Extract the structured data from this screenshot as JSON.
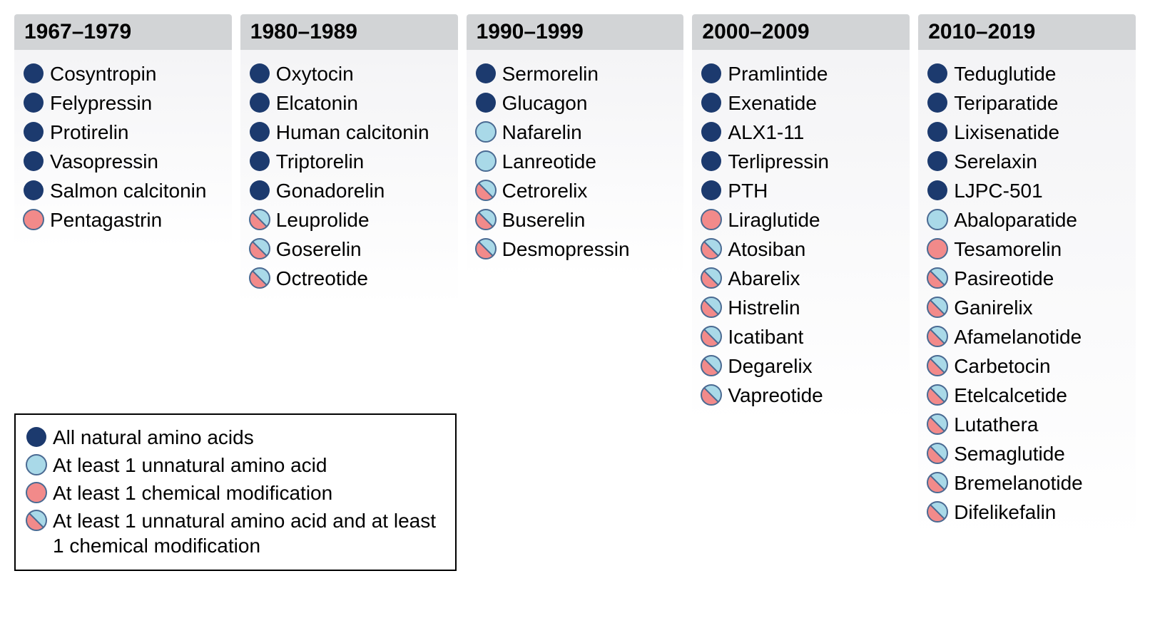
{
  "palette": {
    "navy": "#1c3a6e",
    "lightblue": "#a9d9e8",
    "coral": "#f28a8a",
    "stroke": "#4a6a92",
    "header_bg": "#d2d4d6",
    "body_bg_top": "#f4f4f6",
    "body_bg_bottom": "#ffffff",
    "text": "#000000",
    "legend_border": "#000000"
  },
  "markerTypes": {
    "natural": {
      "kind": "solid",
      "fill": "navy"
    },
    "unnatural": {
      "kind": "solid_outlined",
      "fill": "lightblue",
      "stroke": "stroke"
    },
    "chemmod": {
      "kind": "solid_outlined",
      "fill": "coral",
      "stroke": "stroke"
    },
    "both": {
      "kind": "split",
      "top": "lightblue",
      "bottom": "coral",
      "stroke": "stroke"
    }
  },
  "columns": [
    {
      "header": "1967–1979",
      "items": [
        {
          "label": "Cosyntropin",
          "type": "natural"
        },
        {
          "label": "Felypressin",
          "type": "natural"
        },
        {
          "label": "Protirelin",
          "type": "natural"
        },
        {
          "label": "Vasopressin",
          "type": "natural"
        },
        {
          "label": "Salmon calcitonin",
          "type": "natural"
        },
        {
          "label": "Pentagastrin",
          "type": "chemmod"
        }
      ]
    },
    {
      "header": "1980–1989",
      "items": [
        {
          "label": "Oxytocin",
          "type": "natural"
        },
        {
          "label": "Elcatonin",
          "type": "natural"
        },
        {
          "label": "Human calcitonin",
          "type": "natural"
        },
        {
          "label": "Triptorelin",
          "type": "natural"
        },
        {
          "label": "Gonadorelin",
          "type": "natural"
        },
        {
          "label": "Leuprolide",
          "type": "both"
        },
        {
          "label": "Goserelin",
          "type": "both"
        },
        {
          "label": "Octreotide",
          "type": "both"
        }
      ]
    },
    {
      "header": "1990–1999",
      "items": [
        {
          "label": "Sermorelin",
          "type": "natural"
        },
        {
          "label": "Glucagon",
          "type": "natural"
        },
        {
          "label": "Nafarelin",
          "type": "unnatural"
        },
        {
          "label": "Lanreotide",
          "type": "unnatural"
        },
        {
          "label": "Cetrorelix",
          "type": "both"
        },
        {
          "label": "Buserelin",
          "type": "both"
        },
        {
          "label": "Desmopressin",
          "type": "both"
        }
      ]
    },
    {
      "header": "2000–2009",
      "items": [
        {
          "label": "Pramlintide",
          "type": "natural"
        },
        {
          "label": "Exenatide",
          "type": "natural"
        },
        {
          "label": "ALX1-11",
          "type": "natural"
        },
        {
          "label": "Terlipressin",
          "type": "natural"
        },
        {
          "label": "PTH",
          "type": "natural"
        },
        {
          "label": "Liraglutide",
          "type": "chemmod"
        },
        {
          "label": "Atosiban",
          "type": "both"
        },
        {
          "label": "Abarelix",
          "type": "both"
        },
        {
          "label": "Histrelin",
          "type": "both"
        },
        {
          "label": "Icatibant",
          "type": "both"
        },
        {
          "label": "Degarelix",
          "type": "both"
        },
        {
          "label": "Vapreotide",
          "type": "both"
        }
      ]
    },
    {
      "header": "2010–2019",
      "items": [
        {
          "label": "Teduglutide",
          "type": "natural"
        },
        {
          "label": "Teriparatide",
          "type": "natural"
        },
        {
          "label": "Lixisenatide",
          "type": "natural"
        },
        {
          "label": "Serelaxin",
          "type": "natural"
        },
        {
          "label": "LJPC-501",
          "type": "natural"
        },
        {
          "label": "Abaloparatide",
          "type": "unnatural"
        },
        {
          "label": "Tesamorelin",
          "type": "chemmod"
        },
        {
          "label": "Pasireotide",
          "type": "both"
        },
        {
          "label": "Ganirelix",
          "type": "both"
        },
        {
          "label": "Afamelanotide",
          "type": "both"
        },
        {
          "label": "Carbetocin",
          "type": "both"
        },
        {
          "label": "Etelcalcetide",
          "type": "both"
        },
        {
          "label": "Lutathera",
          "type": "both"
        },
        {
          "label": "Semaglutide",
          "type": "both"
        },
        {
          "label": "Bremelanotide",
          "type": "both"
        },
        {
          "label": "Difelikefalin",
          "type": "both"
        }
      ]
    }
  ],
  "legend": {
    "items": [
      {
        "label": "All natural amino acids",
        "type": "natural"
      },
      {
        "label": "At least 1 unnatural amino acid",
        "type": "unnatural"
      },
      {
        "label": "At least 1 chemical modification",
        "type": "chemmod"
      },
      {
        "label": "At least 1 unnatural amino acid and at least 1 chemical modification",
        "type": "both"
      }
    ]
  },
  "layout": {
    "marker_size": 30,
    "font_size_label": 28,
    "font_size_header": 30,
    "column_gap": 12
  }
}
